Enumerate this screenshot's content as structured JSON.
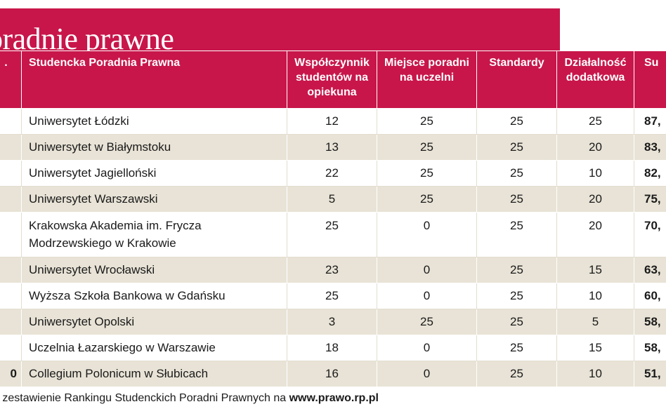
{
  "title": "oradnie prawne",
  "colors": {
    "accent": "#c8164a",
    "row_alt": "#e8e3d6"
  },
  "headers": {
    "rank": ".",
    "name": "Studencka Poradnia Prawna",
    "ratio": "Współczynnik studentów na opiekuna",
    "place": "Miejsce poradni na uczelni",
    "standards": "Standardy",
    "extra": "Działalność dodatkowa",
    "sum": "Su"
  },
  "rows": [
    {
      "rank": "",
      "name": "Uniwersytet Łódzki",
      "ratio": "12",
      "place": "25",
      "standards": "25",
      "extra": "25",
      "sum": "87,"
    },
    {
      "rank": "",
      "name": "Uniwersytet w Białymstoku",
      "ratio": "13",
      "place": "25",
      "standards": "25",
      "extra": "20",
      "sum": "83,"
    },
    {
      "rank": "",
      "name": "Uniwersytet Jagielloński",
      "ratio": "22",
      "place": "25",
      "standards": "25",
      "extra": "10",
      "sum": "82,"
    },
    {
      "rank": "",
      "name": "Uniwersytet Warszawski",
      "ratio": "5",
      "place": "25",
      "standards": "25",
      "extra": "20",
      "sum": "75,"
    },
    {
      "rank": "",
      "name": "Krakowska Akademia im. Frycza Modrzewskiego w Krakowie",
      "ratio": "25",
      "place": "0",
      "standards": "25",
      "extra": "20",
      "sum": "70,"
    },
    {
      "rank": "",
      "name": "Uniwersytet Wrocławski",
      "ratio": "23",
      "place": "0",
      "standards": "25",
      "extra": "15",
      "sum": "63,"
    },
    {
      "rank": "",
      "name": "Wyższa Szkoła Bankowa w Gdańsku",
      "ratio": "25",
      "place": "0",
      "standards": "25",
      "extra": "10",
      "sum": "60,"
    },
    {
      "rank": "",
      "name": "Uniwersytet Opolski",
      "ratio": "3",
      "place": "25",
      "standards": "25",
      "extra": "5",
      "sum": "58,"
    },
    {
      "rank": "",
      "name": "Uczelnia Łazarskiego w Warszawie",
      "ratio": "18",
      "place": "0",
      "standards": "25",
      "extra": "15",
      "sum": "58,"
    },
    {
      "rank": "0",
      "name": "Collegium Polonicum w Słubicach",
      "ratio": "16",
      "place": "0",
      "standards": "25",
      "extra": "10",
      "sum": "51,"
    }
  ],
  "footer": {
    "text": "e zestawienie Rankingu Studenckich Poradni Prawnych na ",
    "link": "www.prawo.rp.pl"
  }
}
